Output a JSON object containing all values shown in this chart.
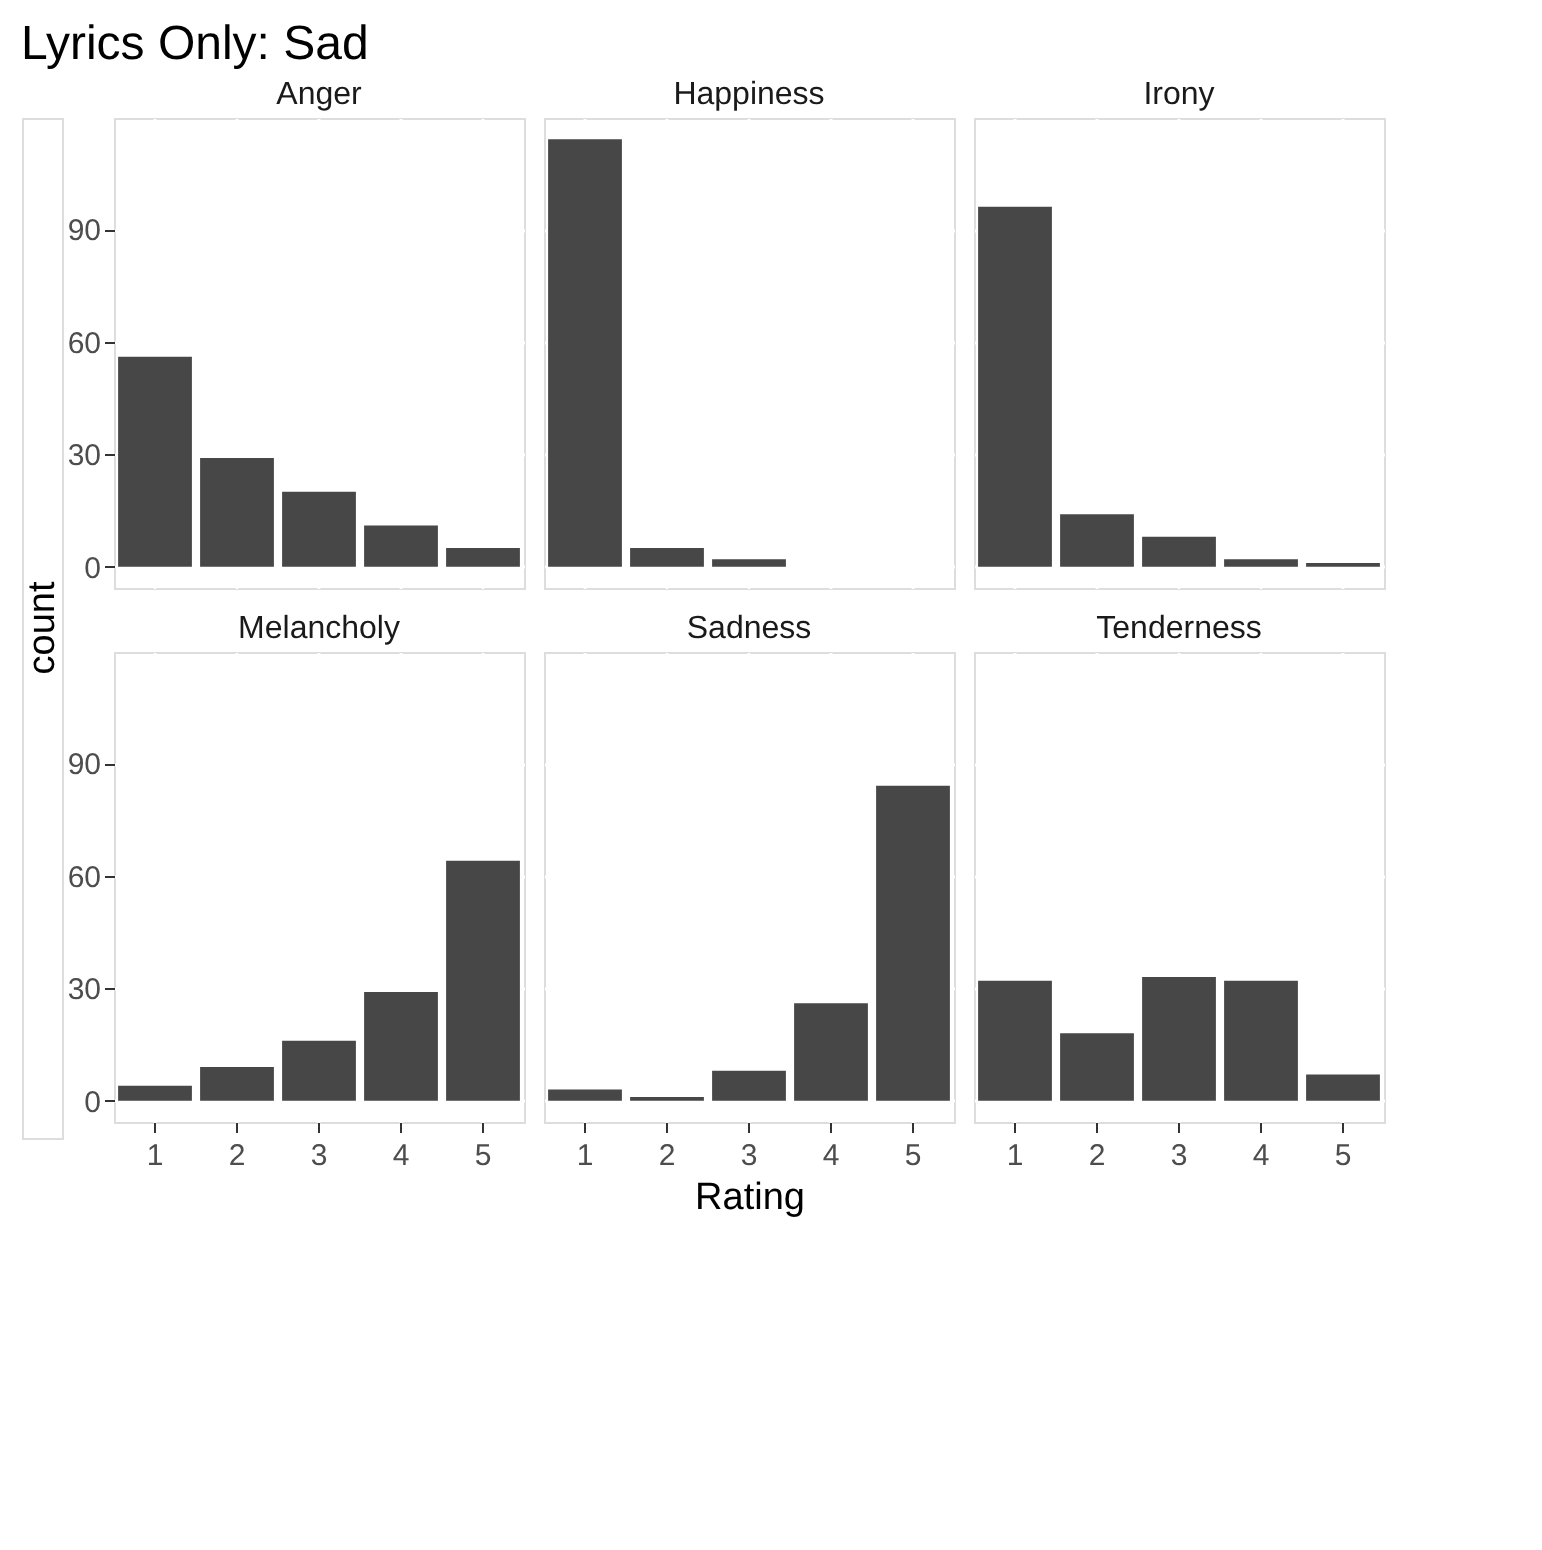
{
  "chart_data": [
    {
      "type": "bar",
      "title": "Anger",
      "annotations": [
        "Lyrics Only: Sad"
      ],
      "ylabel": "count",
      "categories": [
        "1",
        "2",
        "3",
        "4",
        "5"
      ],
      "values": [
        56,
        29,
        20,
        11,
        5
      ],
      "color": "#474747",
      "ylim": [
        -5.7,
        119.7
      ],
      "yticks": [
        0,
        30,
        60,
        90
      ],
      "grid": true,
      "tick_labels": "y"
    },
    {
      "type": "bar",
      "title": "Happiness",
      "categories": [
        "1",
        "2",
        "3",
        "4",
        "5"
      ],
      "values": [
        114,
        5,
        2,
        0,
        0
      ],
      "color": "#474747",
      "ylim": [
        -5.7,
        119.7
      ],
      "yticks": [
        0,
        30,
        60,
        90
      ],
      "grid": true,
      "tick_labels": false
    },
    {
      "type": "bar",
      "title": "Irony",
      "categories": [
        "1",
        "2",
        "3",
        "4",
        "5"
      ],
      "values": [
        96,
        14,
        8,
        2,
        1
      ],
      "color": "#474747",
      "ylim": [
        -5.7,
        119.7
      ],
      "yticks": [
        0,
        30,
        60,
        90
      ],
      "grid": true,
      "tick_labels": false
    },
    {
      "type": "bar",
      "title": "Melancholy",
      "categories": [
        "1",
        "2",
        "3",
        "4",
        "5"
      ],
      "values": [
        4,
        9,
        16,
        29,
        64
      ],
      "color": "#474747",
      "ylim": [
        -5.7,
        119.7
      ],
      "yticks": [
        0,
        30,
        60,
        90
      ],
      "grid": true
    },
    {
      "type": "bar",
      "title": "Sadness",
      "xlabel": "Rating",
      "categories": [
        "1",
        "2",
        "3",
        "4",
        "5"
      ],
      "values": [
        3,
        1,
        8,
        26,
        84
      ],
      "color": "#474747",
      "ylim": [
        -5.7,
        119.7
      ],
      "yticks": [
        0,
        30,
        60,
        90
      ],
      "grid": true,
      "tick_labels": "x"
    },
    {
      "type": "bar",
      "title": "Tenderness",
      "categories": [
        "1",
        "2",
        "3",
        "4",
        "5"
      ],
      "values": [
        32,
        18,
        33,
        32,
        7
      ],
      "color": "#474747",
      "ylim": [
        -5.7,
        119.7
      ],
      "yticks": [
        0,
        30,
        60,
        90
      ],
      "grid": true,
      "tick_labels": "x"
    }
  ]
}
